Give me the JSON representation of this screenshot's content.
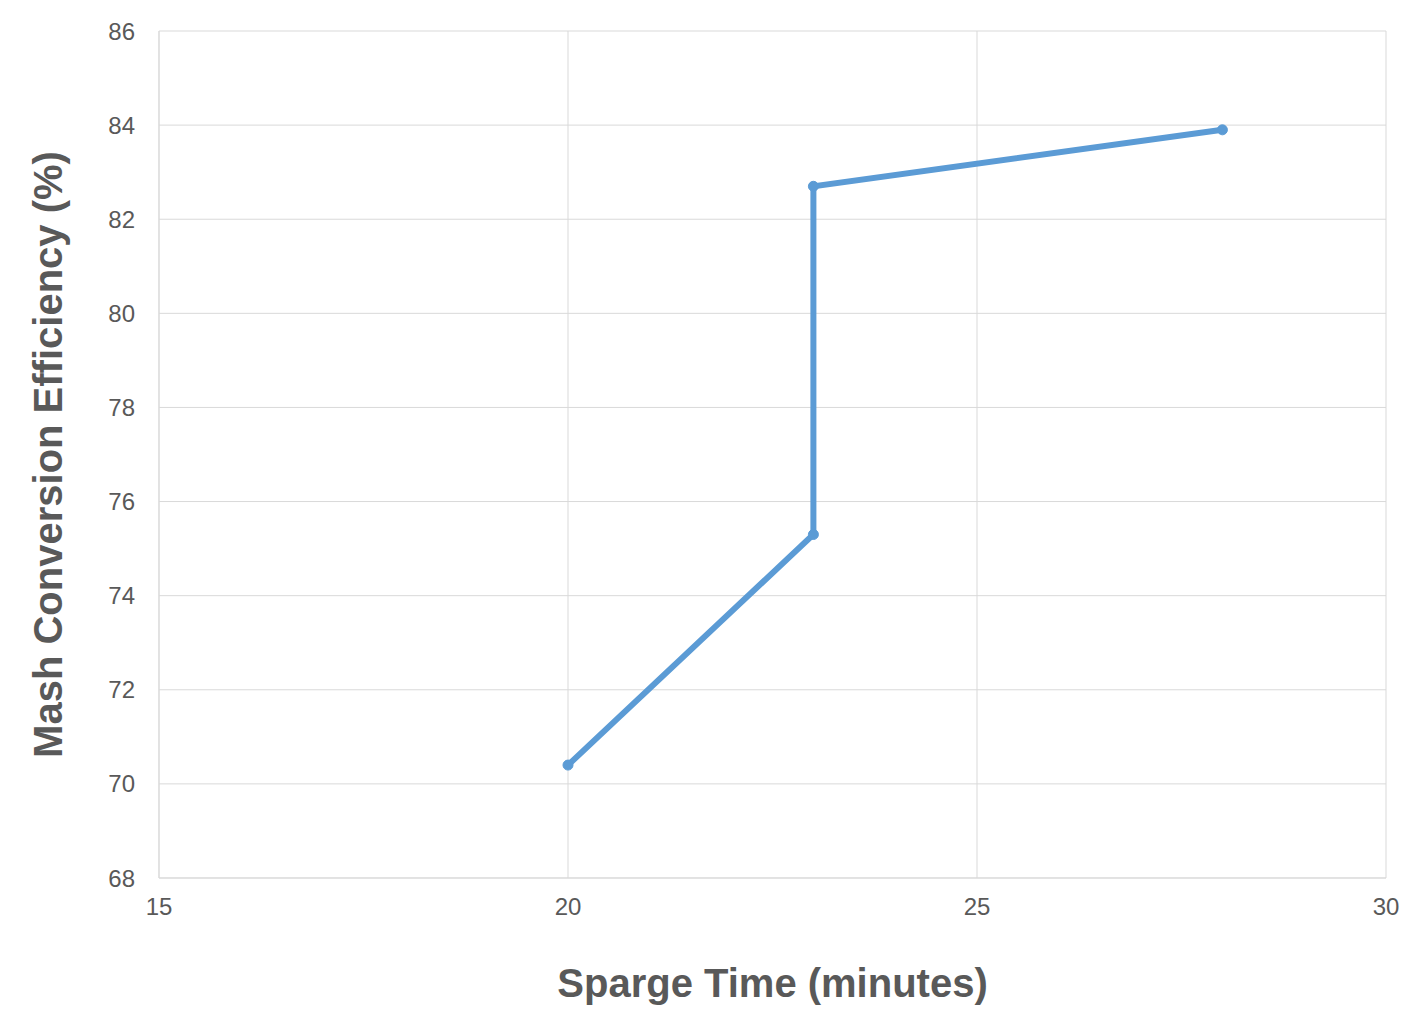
{
  "chart_data": {
    "type": "line",
    "x_label": "Sparge Time (minutes)",
    "y_label": "Mash Conversion Efficiency (%)",
    "x": [
      20,
      23,
      23,
      28
    ],
    "values": [
      70.4,
      75.3,
      82.7,
      83.9
    ],
    "color": "#5b9bd5",
    "marker": "circle",
    "xlim": [
      15,
      30
    ],
    "xticks": [
      15,
      20,
      25,
      30
    ],
    "ylim": [
      68,
      86
    ],
    "yticks": [
      68,
      70,
      72,
      74,
      76,
      78,
      80,
      82,
      84,
      86
    ],
    "grid": true
  }
}
